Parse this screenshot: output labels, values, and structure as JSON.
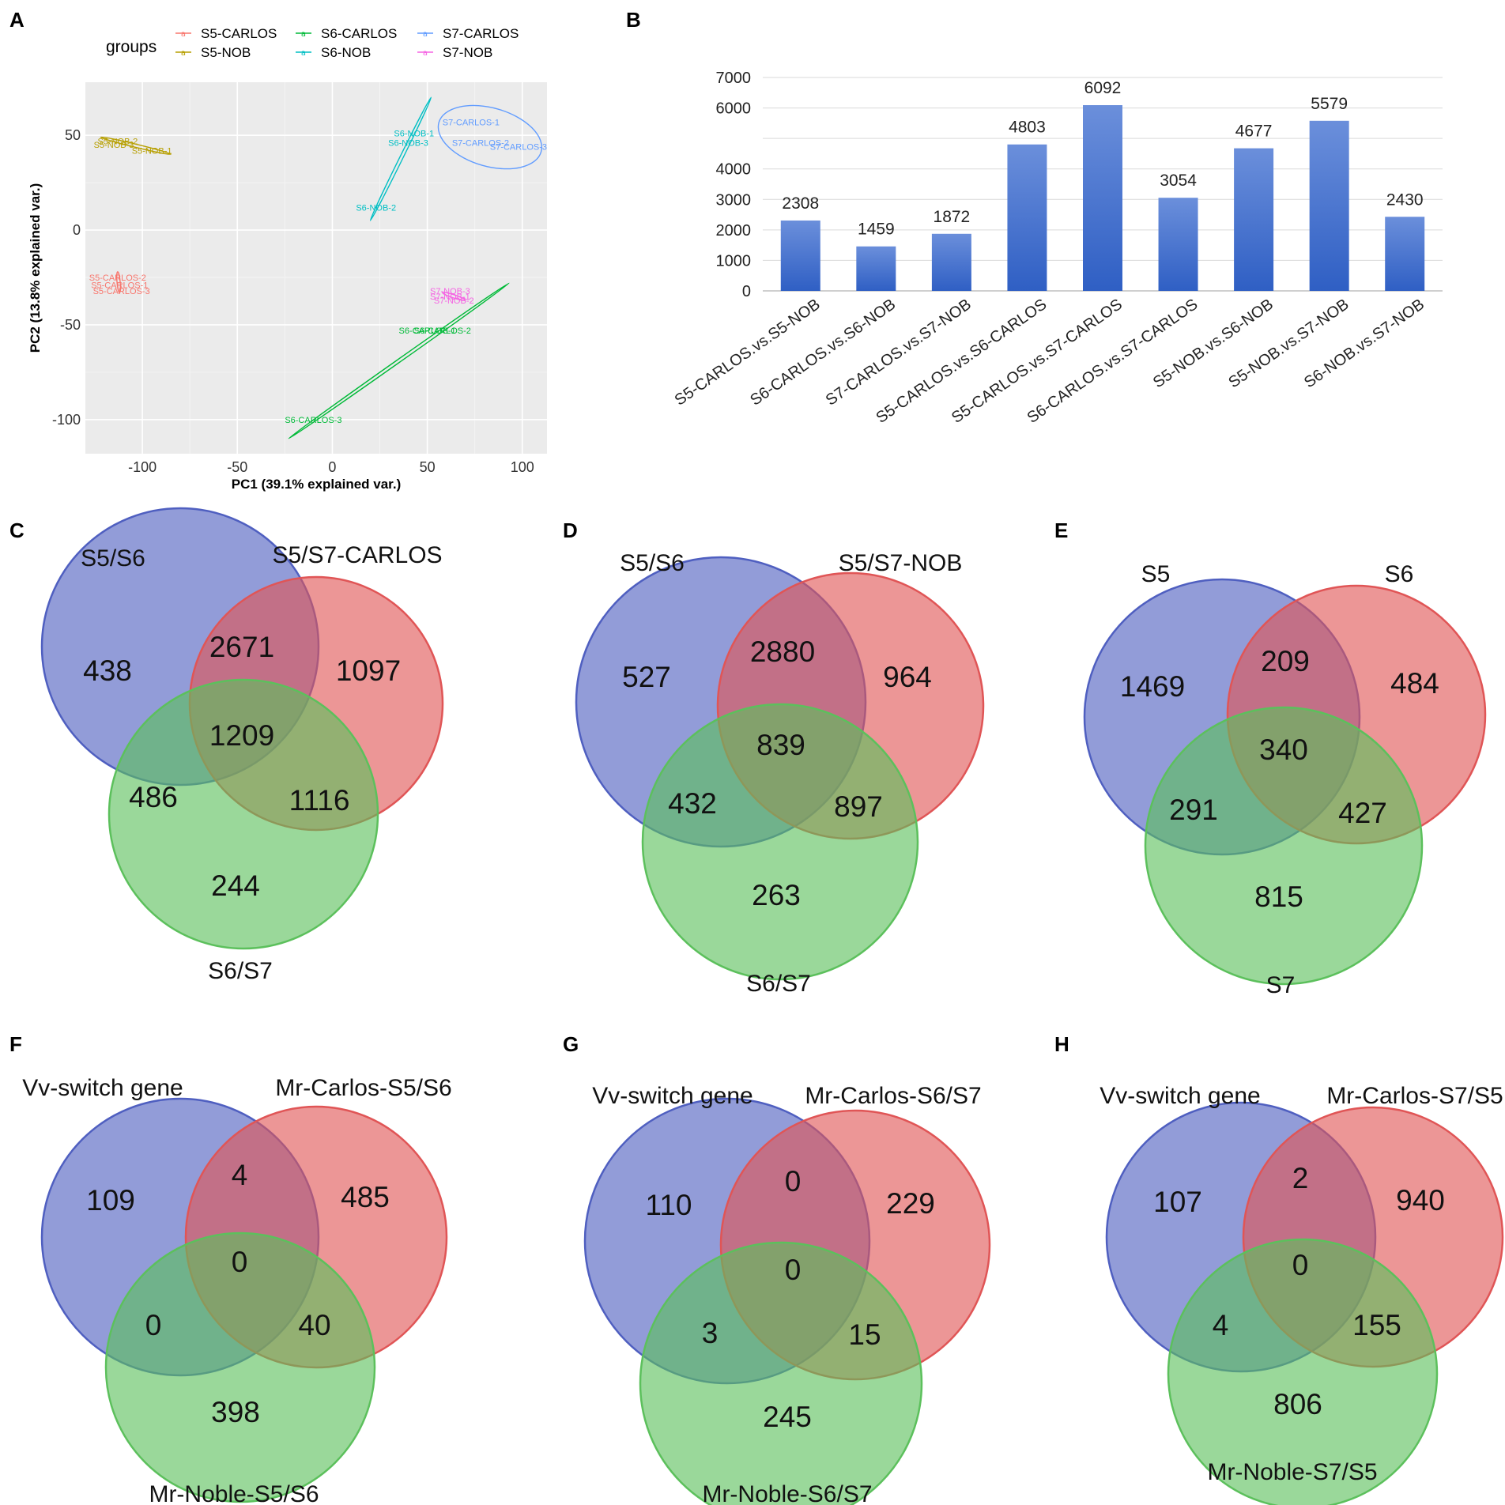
{
  "chart_data": [
    {
      "panel": "A",
      "type": "scatter",
      "xlabel": "PC1 (39.1% explained var.)",
      "ylabel": "PC2 (13.8% explained var.)",
      "xlim": [
        -130,
        113
      ],
      "ylim": [
        -118,
        78
      ],
      "xticks": [
        -100,
        -50,
        0,
        50,
        100
      ],
      "yticks": [
        50,
        0,
        -50,
        -100
      ],
      "xtick_labels": [
        "-100",
        "-50",
        "0",
        "50",
        "100"
      ],
      "ytick_labels": [
        "50",
        "0",
        "-50",
        "-100"
      ],
      "legend_title": "groups",
      "legend": [
        "S5-CARLOS",
        "S5-NOB",
        "S6-CARLOS",
        "S6-NOB",
        "S7-CARLOS",
        "S7-NOB"
      ],
      "colors": {
        "S5-CARLOS": "#f8766d",
        "S5-NOB": "#b79f00",
        "S6-CARLOS": "#00ba38",
        "S6-NOB": "#00bfc4",
        "S7-CARLOS": "#619cff",
        "S7-NOB": "#f564e3"
      },
      "points": [
        {
          "label": "S5-CARLOS-1",
          "group": "S5-CARLOS",
          "x": -112,
          "y": -29
        },
        {
          "label": "S5-CARLOS-2",
          "group": "S5-CARLOS",
          "x": -113,
          "y": -25
        },
        {
          "label": "S5-CARLOS-3",
          "group": "S5-CARLOS",
          "x": -111,
          "y": -32
        },
        {
          "label": "S5-NOB-1",
          "group": "S5-NOB",
          "x": -95,
          "y": 42
        },
        {
          "label": "S5-NOB-2",
          "group": "S5-NOB",
          "x": -113,
          "y": 47
        },
        {
          "label": "S5-NOB-3",
          "group": "S5-NOB",
          "x": -115,
          "y": 45
        },
        {
          "label": "S6-CARLOS-1",
          "group": "S6-CARLOS",
          "x": 50,
          "y": -53
        },
        {
          "label": "S6-CARLOS-2",
          "group": "S6-CARLOS",
          "x": 58,
          "y": -53
        },
        {
          "label": "S6-CARLOS-3",
          "group": "S6-CARLOS",
          "x": -10,
          "y": -100
        },
        {
          "label": "S6-NOB-1",
          "group": "S6-NOB",
          "x": 43,
          "y": 51
        },
        {
          "label": "S6-NOB-2",
          "group": "S6-NOB",
          "x": 23,
          "y": 12
        },
        {
          "label": "S6-NOB-3",
          "group": "S6-NOB",
          "x": 40,
          "y": 46
        },
        {
          "label": "S7-CARLOS-1",
          "group": "S7-CARLOS",
          "x": 73,
          "y": 57
        },
        {
          "label": "S7-CARLOS-2",
          "group": "S7-CARLOS",
          "x": 78,
          "y": 46
        },
        {
          "label": "S7-CARLOS-3",
          "group": "S7-CARLOS",
          "x": 98,
          "y": 44
        },
        {
          "label": "S7-NOB-1",
          "group": "S7-NOB",
          "x": 62,
          "y": -35
        },
        {
          "label": "S7-NOB-2",
          "group": "S7-NOB",
          "x": 64,
          "y": -37
        },
        {
          "label": "S7-NOB-3",
          "group": "S7-NOB",
          "x": 62,
          "y": -32
        }
      ],
      "ellipses": [
        {
          "group": "S5-NOB",
          "from": [
            -122,
            49
          ],
          "to": [
            -85,
            40
          ]
        },
        {
          "group": "S5-CARLOS",
          "from": [
            -113,
            -22
          ],
          "to": [
            -112,
            -33
          ]
        },
        {
          "group": "S6-NOB",
          "from": [
            52,
            70
          ],
          "to": [
            20,
            5
          ]
        },
        {
          "group": "S6-CARLOS",
          "from": [
            -23,
            -110
          ],
          "to": [
            93,
            -28
          ]
        },
        {
          "group": "S7-NOB",
          "from": [
            58,
            -33
          ],
          "to": [
            70,
            -37
          ]
        }
      ],
      "s7_carlos_ellipse": {
        "cx": 83,
        "cy": 49,
        "rx": 28,
        "ry": 7,
        "angle_deg": 16
      }
    },
    {
      "panel": "B",
      "type": "bar",
      "categories": [
        "S5-CARLOS.vs.S5-NOB",
        "S6-CARLOS.vs.S6-NOB",
        "S7-CARLOS.vs.S7-NOB",
        "S5-CARLOS.vs.S6-CARLOS",
        "S5-CARLOS.vs.S7-CARLOS",
        "S6-CARLOS.vs.S7-CARLOS",
        "S5-NOB.vs.S6-NOB",
        "S5-NOB.vs.S7-NOB",
        "S6-NOB.vs.S7-NOB"
      ],
      "values": [
        2308,
        1459,
        1872,
        4803,
        6092,
        3054,
        4677,
        5579,
        2430
      ],
      "value_labels": [
        "2308",
        "1459",
        "1872",
        "4803",
        "6092",
        "3054",
        "4677",
        "5579",
        "2430"
      ],
      "yticks": [
        0,
        1000,
        2000,
        3000,
        4000,
        6000,
        7000
      ],
      "ytick_labels": [
        "0",
        "1000",
        "2000",
        "3000",
        "4000",
        "6000",
        "7000"
      ],
      "ylim": [
        0,
        7000
      ],
      "title": "",
      "xlabel": "",
      "ylabel": ""
    }
  ],
  "panel_labels": [
    "A",
    "B",
    "C",
    "D",
    "E",
    "F",
    "G",
    "H"
  ],
  "venns": [
    {
      "panel": "C",
      "sets": [
        "S5/S6",
        "S5/S7-CARLOS",
        "S6/S7"
      ],
      "only_a": "438",
      "only_b": "1097",
      "only_c": "244",
      "ab": "2671",
      "ac": "486",
      "bc": "1116",
      "abc": "1209"
    },
    {
      "panel": "D",
      "sets": [
        "S5/S6",
        "S5/S7-NOB",
        "S6/S7"
      ],
      "only_a": "527",
      "only_b": "964",
      "only_c": "263",
      "ab": "2880",
      "ac": "432",
      "bc": "897",
      "abc": "839"
    },
    {
      "panel": "E",
      "sets": [
        "S5",
        "S6",
        "S7"
      ],
      "only_a": "1469",
      "only_b": "484",
      "only_c": "815",
      "ab": "209",
      "ac": "291",
      "bc": "427",
      "abc": "340"
    },
    {
      "panel": "F",
      "sets": [
        "Vv-switch gene",
        "Mr-Carlos-S5/S6",
        "Mr-Noble-S5/S6"
      ],
      "only_a": "109",
      "only_b": "485",
      "only_c": "398",
      "ab": "4",
      "ac": "0",
      "bc": "40",
      "abc": "0"
    },
    {
      "panel": "G",
      "sets": [
        "Vv-switch gene",
        "Mr-Carlos-S6/S7",
        "Mr-Noble-S6/S7"
      ],
      "only_a": "110",
      "only_b": "229",
      "only_c": "245",
      "ab": "0",
      "ac": "3",
      "bc": "15",
      "abc": "0"
    },
    {
      "panel": "H",
      "sets": [
        "Vv-switch gene",
        "Mr-Carlos-S7/S5",
        "Mr-Noble-S7/S5"
      ],
      "only_a": "107",
      "only_b": "940",
      "only_c": "806",
      "ab": "2",
      "ac": "4",
      "bc": "155",
      "abc": "0"
    }
  ],
  "venn_colors": {
    "a": "#4f5fc0",
    "b": "#e05556",
    "c": "#5cc05c"
  }
}
